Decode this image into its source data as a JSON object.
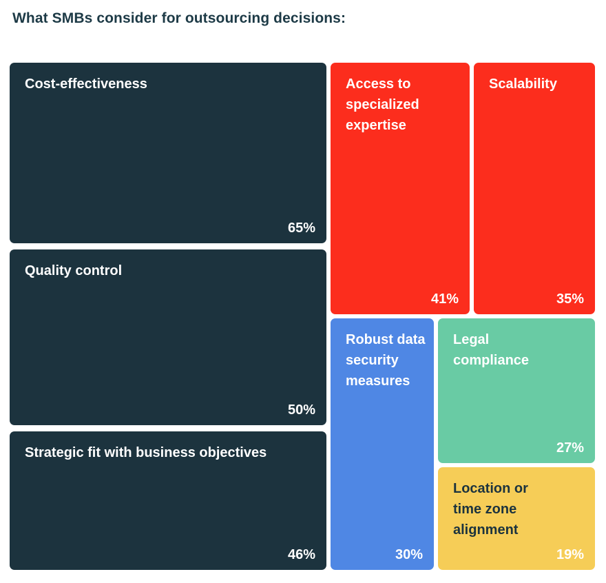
{
  "title": "What SMBs consider for outsourcing decisions:",
  "colors": {
    "background": "#ffffff",
    "title_text": "#1d3a46",
    "dark": "#1c333e",
    "red": "#fc2d1d",
    "blue": "#4f87e4",
    "green": "#69cba4",
    "yellow": "#f6cd57",
    "white_text": "#ffffff"
  },
  "chart_data": {
    "type": "treemap",
    "title": "What SMBs consider for outsourcing decisions:",
    "unit": "%",
    "legend": "none",
    "items": [
      {
        "label": "Cost-effectiveness",
        "value": 65,
        "display": "65%",
        "color": "#1c333e",
        "text_color": "#ffffff",
        "value_color": "#ffffff"
      },
      {
        "label": "Quality control",
        "value": 50,
        "display": "50%",
        "color": "#1c333e",
        "text_color": "#ffffff",
        "value_color": "#ffffff"
      },
      {
        "label": "Strategic fit with business objectives",
        "value": 46,
        "display": "46%",
        "color": "#1c333e",
        "text_color": "#ffffff",
        "value_color": "#ffffff"
      },
      {
        "label": "Access to\nspecialized\nexpertise",
        "value": 41,
        "display": "41%",
        "color": "#fc2d1d",
        "text_color": "#ffffff",
        "value_color": "#ffffff"
      },
      {
        "label": "Scalability",
        "value": 35,
        "display": "35%",
        "color": "#fc2d1d",
        "text_color": "#ffffff",
        "value_color": "#ffffff"
      },
      {
        "label": "Robust data\nsecurity\nmeasures",
        "value": 30,
        "display": "30%",
        "color": "#4f87e4",
        "text_color": "#ffffff",
        "value_color": "#ffffff"
      },
      {
        "label": "Legal\ncompliance",
        "value": 27,
        "display": "27%",
        "color": "#69cba4",
        "text_color": "#ffffff",
        "value_color": "#ffffff"
      },
      {
        "label": "Location or\ntime zone\nalignment",
        "value": 19,
        "display": "19%",
        "color": "#f6cd57",
        "text_color": "#1c333e",
        "value_color": "#ffffff"
      }
    ]
  }
}
